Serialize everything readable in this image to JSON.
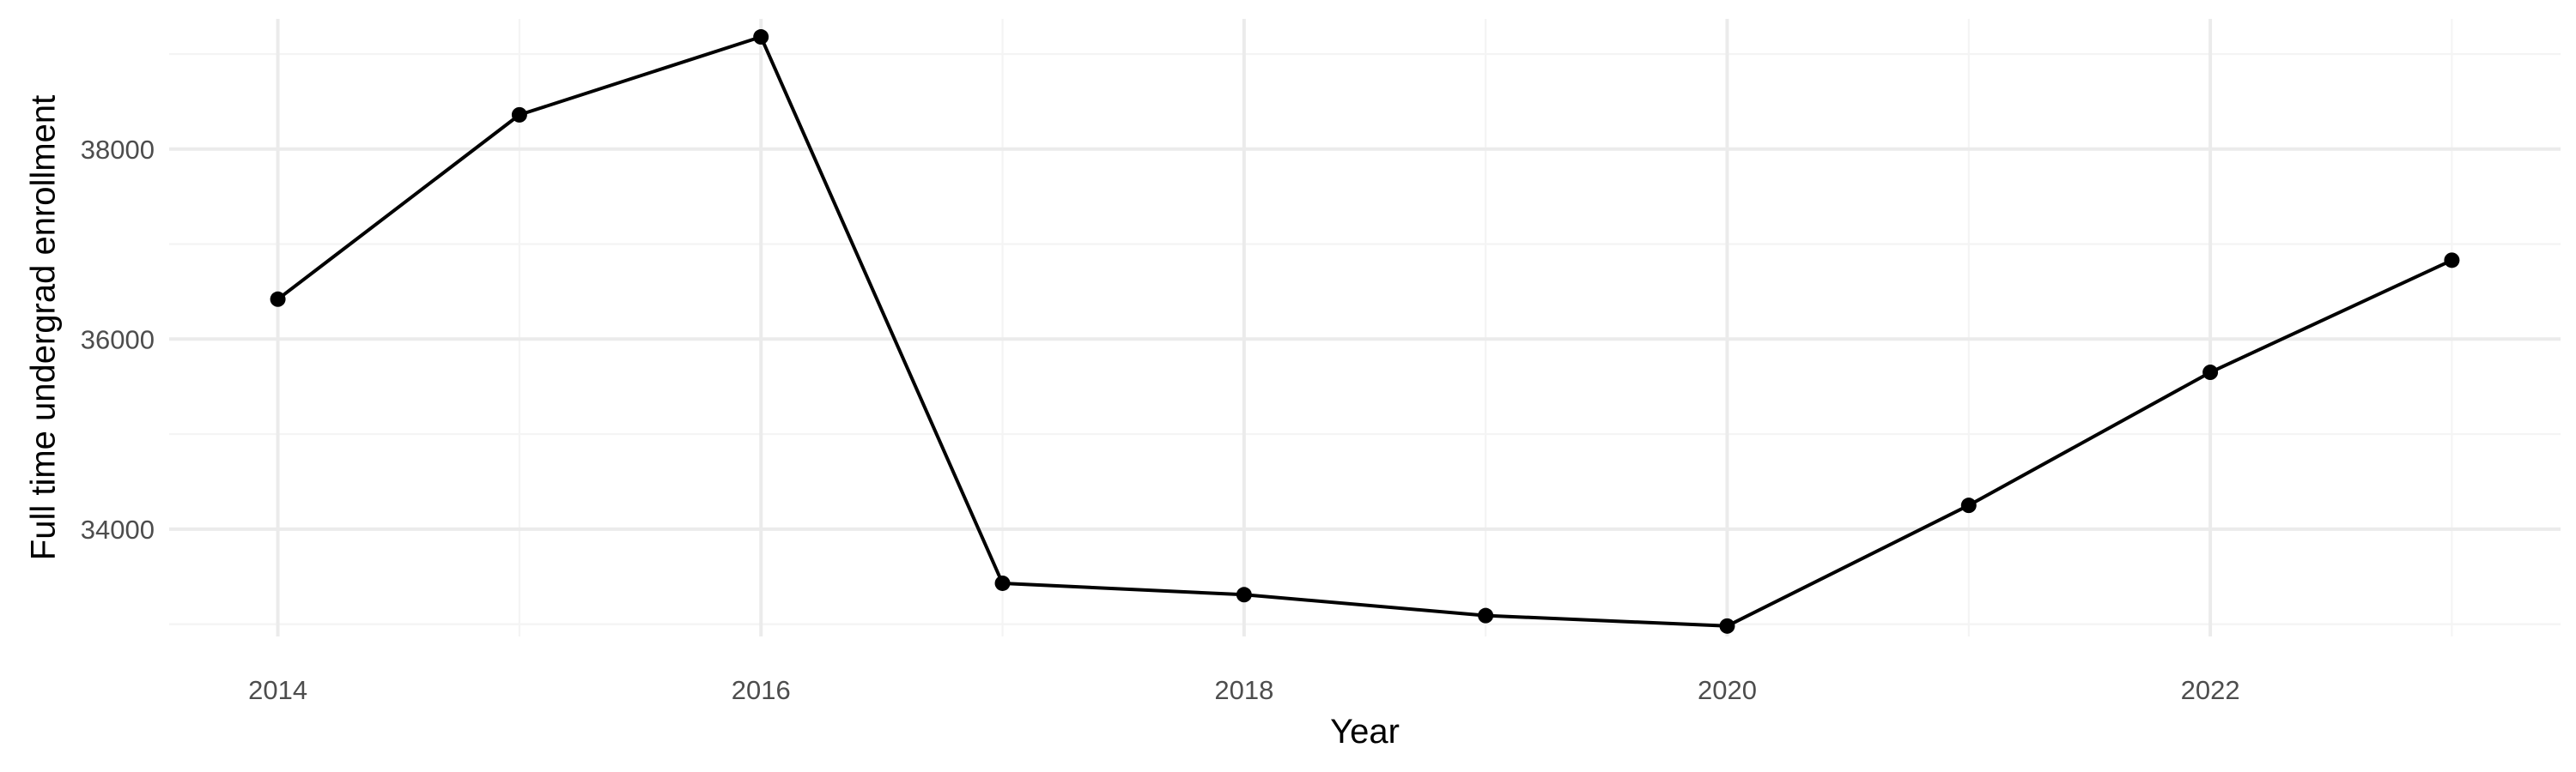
{
  "chart_data": {
    "type": "line",
    "xlabel": "Year",
    "ylabel": "Full time undergrad enrollment",
    "x": [
      2014,
      2015,
      2016,
      2017,
      2018,
      2019,
      2020,
      2021,
      2022,
      2023
    ],
    "series": [
      {
        "values": [
          36420,
          38360,
          39180,
          33430,
          33310,
          33090,
          32980,
          34250,
          35650,
          36830
        ]
      }
    ],
    "xlim": [
      2013.55,
      2023.45
    ],
    "ylim": [
      32870,
      39370
    ],
    "x_ticks": [
      2014,
      2016,
      2018,
      2020,
      2022
    ],
    "x_tick_labels": [
      "2014",
      "2016",
      "2018",
      "2020",
      "2022"
    ],
    "y_ticks": [
      34000,
      36000,
      38000
    ],
    "y_tick_labels": [
      "34000",
      "36000",
      "38000"
    ],
    "grid": true,
    "legend": "none",
    "colors": {
      "line": "#000000",
      "point": "#000000",
      "grid_major": "#ebebeb",
      "grid_minor": "#f4f4f4",
      "tick_text": "#4d4d4d",
      "background": "#ffffff"
    }
  }
}
